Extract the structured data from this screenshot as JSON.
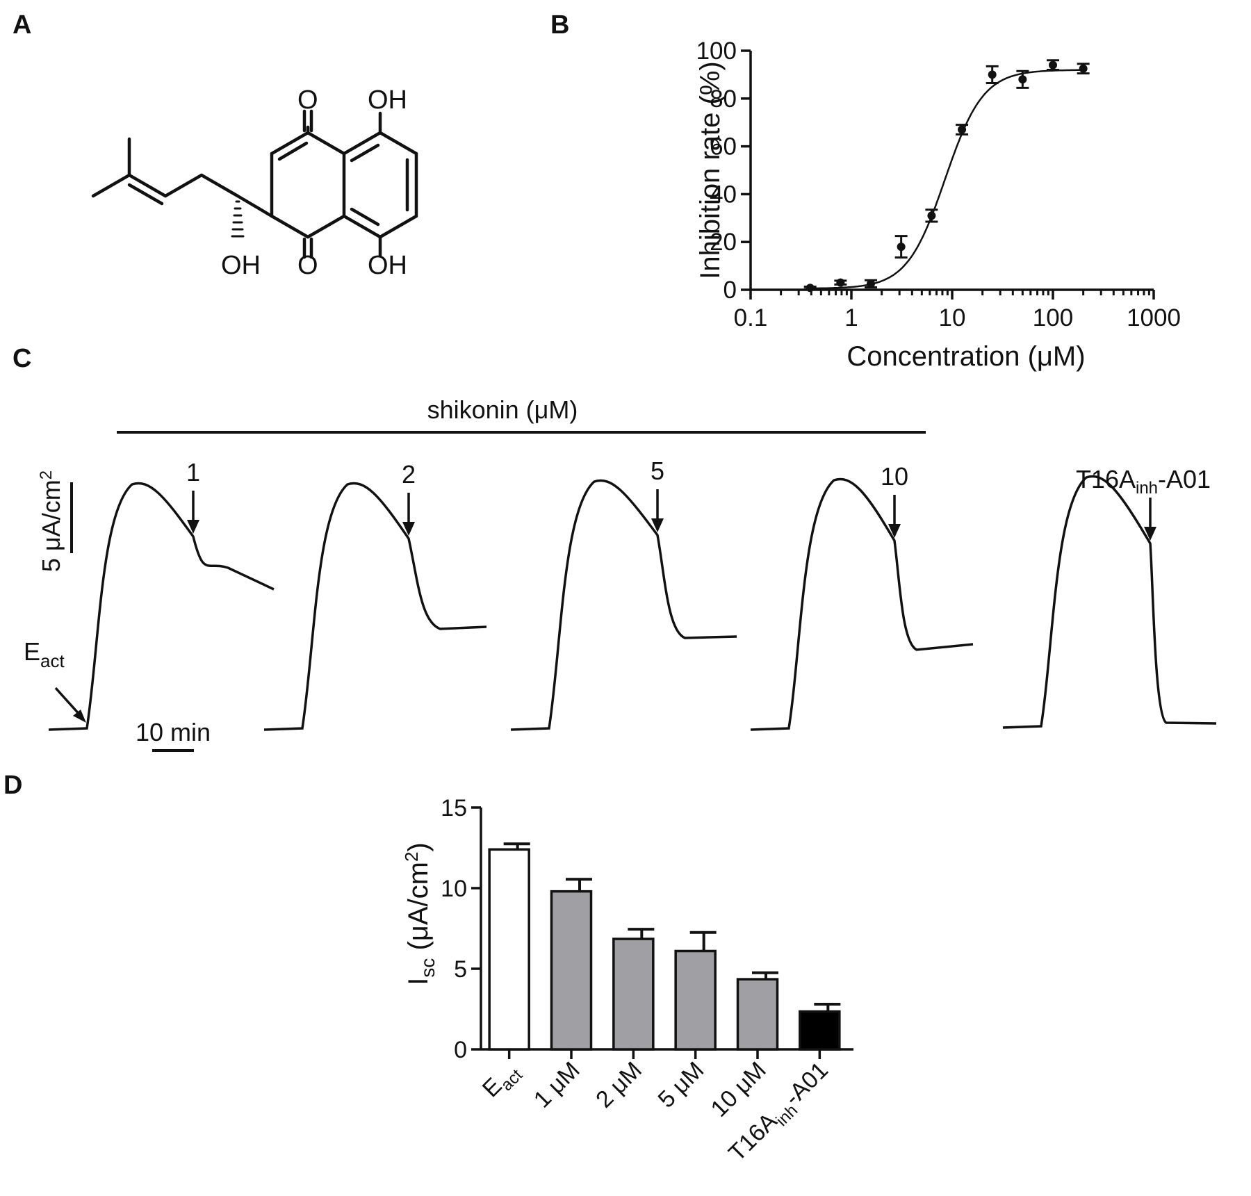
{
  "panel_labels": [
    "A",
    "B",
    "C",
    "D"
  ],
  "structure": {
    "name": "shikonin",
    "atom_labels": {
      "o_top": "O",
      "oh_top": "OH",
      "oh_side": "OH",
      "o_bottom": "O",
      "oh_bottom": "OH"
    }
  },
  "chart_data": [
    {
      "panel": "B",
      "type": "scatter",
      "xscale": "log",
      "xlabel": "Concentration (μM)",
      "ylabel": "Inhibition rate (%)",
      "xlim": [
        0.1,
        1000
      ],
      "ylim": [
        0,
        100
      ],
      "x_ticks": [
        "0.1",
        "1",
        "10",
        "100",
        "1000"
      ],
      "y_ticks": [
        "0",
        "20",
        "40",
        "60",
        "80",
        "100"
      ],
      "points": [
        {
          "x": 0.39,
          "y": 0.8,
          "err": 0.5
        },
        {
          "x": 0.78,
          "y": 3.0,
          "err": 0.8
        },
        {
          "x": 1.56,
          "y": 2.5,
          "err": 1.5
        },
        {
          "x": 3.12,
          "y": 18.0,
          "err": 4.5
        },
        {
          "x": 6.25,
          "y": 31.0,
          "err": 2.5
        },
        {
          "x": 12.5,
          "y": 67.0,
          "err": 2.0
        },
        {
          "x": 25,
          "y": 90.0,
          "err": 3.5
        },
        {
          "x": 50,
          "y": 88.0,
          "err": 3.5
        },
        {
          "x": 100,
          "y": 94.0,
          "err": 2.0
        },
        {
          "x": 200,
          "y": 92.5,
          "err": 2.0
        }
      ],
      "fit": {
        "bottom": 0.5,
        "top": 92,
        "ic50": 8.5,
        "hill": 2.3
      }
    },
    {
      "panel": "C",
      "type": "line",
      "bar_label": "shikonin (μM)",
      "scale_y_label": "5 μA/cm",
      "scale_y_sup": "2",
      "scale_x_label": "10 min",
      "start_label": "E",
      "start_label_sub": "act",
      "traces": [
        {
          "label": "1",
          "label_sub": "",
          "label_suffix": ""
        },
        {
          "label": "2",
          "label_sub": "",
          "label_suffix": ""
        },
        {
          "label": "5",
          "label_sub": "",
          "label_suffix": ""
        },
        {
          "label": "10",
          "label_sub": "",
          "label_suffix": ""
        },
        {
          "label": "T16A",
          "label_sub": "inh",
          "label_suffix": "-A01"
        }
      ]
    },
    {
      "panel": "D",
      "type": "bar",
      "ylabel": "I",
      "ylabel_sub": "sc",
      "ylabel_unit": "(μA/cm",
      "ylabel_sup": "2",
      "ylabel_close": ")",
      "ylim": [
        0,
        15
      ],
      "y_ticks": [
        "0",
        "5",
        "10",
        "15"
      ],
      "bars": [
        {
          "category": "E",
          "sub": "act",
          "suffix": "",
          "value": 12.4,
          "err": 0.35,
          "color": "#ffffff"
        },
        {
          "category": "1 μM",
          "sub": "",
          "suffix": "",
          "value": 9.8,
          "err": 0.75,
          "color": "#a0a0a4"
        },
        {
          "category": "2 μM",
          "sub": "",
          "suffix": "",
          "value": 6.85,
          "err": 0.6,
          "color": "#a0a0a4"
        },
        {
          "category": "5 μM",
          "sub": "",
          "suffix": "",
          "value": 6.1,
          "err": 1.15,
          "color": "#a0a0a4"
        },
        {
          "category": "10 μM",
          "sub": "",
          "suffix": "",
          "value": 4.35,
          "err": 0.4,
          "color": "#a0a0a4"
        },
        {
          "category": "T16A",
          "sub": "inh",
          "suffix": "-A01",
          "value": 2.35,
          "err": 0.45,
          "color": "#000000"
        }
      ]
    }
  ]
}
